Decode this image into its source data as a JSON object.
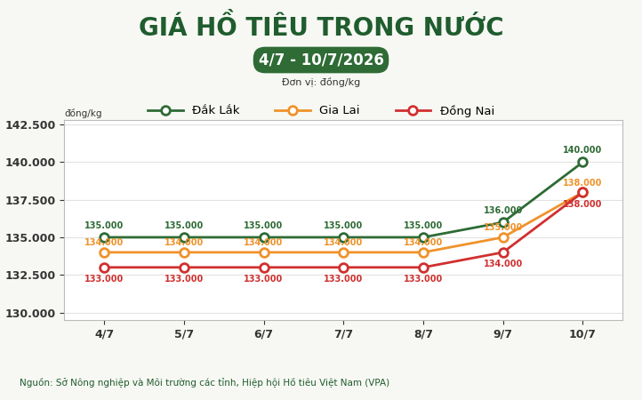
{
  "chart_data": {
    "type": "line",
    "title": "GIÁ HỒ TIÊU TRONG NƯỚC",
    "subtitle": "4/7 - 10/7/2026",
    "unit": "Đơn vị: đồng/kg",
    "y_label": "đồng/kg",
    "source": "Nguồn: Sở Nông nghiệp và Môi trường các tỉnh, Hiệp hội Hồ tiêu Việt Nam (VPA)",
    "categories": [
      "4/7",
      "5/7",
      "6/7",
      "7/7",
      "8/7",
      "9/7",
      "10/7"
    ],
    "series": [
      {
        "name": "Đắk Lắk",
        "color": "#2e6b35",
        "values": [
          135000,
          135000,
          135000,
          135000,
          135000,
          136000,
          140000
        ],
        "value_labels": [
          "135.000",
          "135.000",
          "135.000",
          "135.000",
          "135.000",
          "136.000",
          "140.000"
        ]
      },
      {
        "name": "Gia Lai",
        "color": "#f0922b",
        "values": [
          134000,
          134000,
          134000,
          134000,
          134000,
          135000,
          138000
        ],
        "value_labels": [
          "134.000",
          "134.000",
          "134.000",
          "134.000",
          "134.000",
          "135.000",
          "138.000"
        ]
      },
      {
        "name": "Đồng Nai",
        "color": "#d0302f",
        "values": [
          133000,
          133000,
          133000,
          133000,
          133000,
          134000,
          138000
        ],
        "value_labels": [
          "133.000",
          "133.000",
          "133.000",
          "133.000",
          "133.000",
          "134.000",
          "138.000"
        ]
      }
    ],
    "ylim": [
      129500,
      142800
    ],
    "yticks": [
      {
        "value": 130000,
        "label": "130.000"
      },
      {
        "value": 132500,
        "label": "132.500"
      },
      {
        "value": 135000,
        "label": "135.000"
      },
      {
        "value": 137500,
        "label": "137.500"
      },
      {
        "value": 140000,
        "label": "140.000"
      },
      {
        "value": 142500,
        "label": "142.500"
      }
    ],
    "grid": true,
    "legend": "upper center",
    "data_labels": true,
    "marker": "o"
  }
}
